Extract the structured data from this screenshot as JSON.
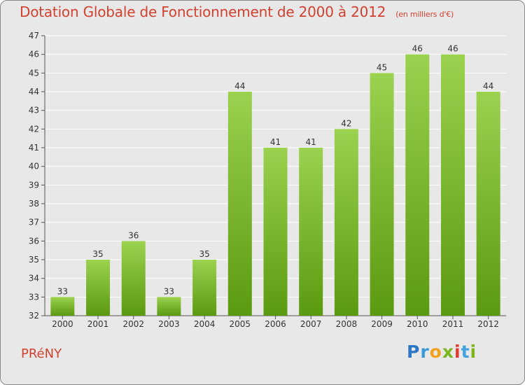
{
  "header": {
    "title": "Dotation Globale de Fonctionnement de 2000 à 2012",
    "unit": "(en milliers d'€)"
  },
  "footer": {
    "commune": "PRéNY",
    "logo": "Proxiti"
  },
  "colors": {
    "title": "#d2412f",
    "bar_top": "#9bd24f",
    "bar_bottom": "#5a9a10",
    "background": "#e8e8e8",
    "grid": "#ffffff"
  },
  "chart_data": {
    "type": "bar",
    "title": "Dotation Globale de Fonctionnement de 2000 à 2012",
    "subtitle": "(en milliers d'€)",
    "xlabel": "",
    "ylabel": "",
    "ylim": [
      32,
      47
    ],
    "yticks": [
      32,
      33,
      34,
      35,
      36,
      37,
      38,
      39,
      40,
      41,
      42,
      43,
      44,
      45,
      46,
      47
    ],
    "grid": true,
    "categories": [
      "2000",
      "2001",
      "2002",
      "2003",
      "2004",
      "2005",
      "2006",
      "2007",
      "2008",
      "2009",
      "2010",
      "2011",
      "2012"
    ],
    "values": [
      33,
      35,
      36,
      33,
      35,
      44,
      41,
      41,
      42,
      45,
      46,
      46,
      44
    ]
  }
}
